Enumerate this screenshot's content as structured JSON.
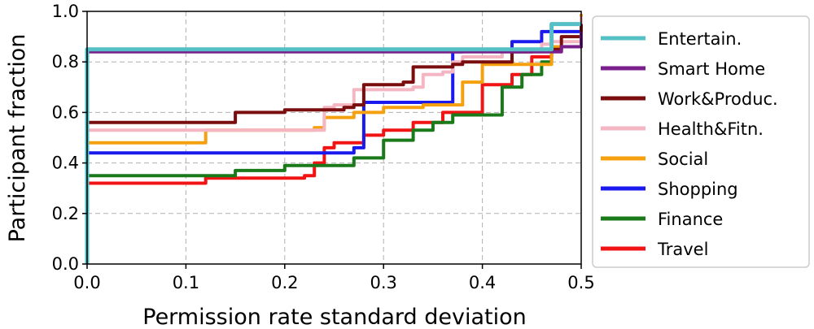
{
  "chart_data": {
    "type": "line",
    "title": "",
    "xlabel": "Permission rate standard deviation",
    "ylabel": "Participant fraction",
    "xlim": [
      0.0,
      0.5
    ],
    "ylim": [
      0.0,
      1.0
    ],
    "grid": true,
    "legend_position": "right",
    "xticks": [
      "0.0",
      "0.1",
      "0.2",
      "0.3",
      "0.4",
      "0.5"
    ],
    "yticks": [
      "0.0",
      "0.2",
      "0.4",
      "0.6",
      "0.8",
      "1.0"
    ],
    "series": [
      {
        "name": "Entertain.",
        "color": "#55bfc6",
        "x": [
          0.0,
          0.0,
          0.47,
          0.47,
          0.5
        ],
        "y": [
          0.0,
          0.85,
          0.86,
          0.95,
          0.95
        ]
      },
      {
        "name": "Smart Home",
        "color": "#7a1e8c",
        "x": [
          0.0,
          0.0,
          0.45,
          0.48,
          0.5
        ],
        "y": [
          0.0,
          0.84,
          0.84,
          0.86,
          0.92
        ]
      },
      {
        "name": "Work&Produc.",
        "color": "#7a0d0d",
        "x": [
          0.0,
          0.0,
          0.1,
          0.15,
          0.15,
          0.2,
          0.26,
          0.27,
          0.28,
          0.28,
          0.32,
          0.33,
          0.37,
          0.38,
          0.43,
          0.45,
          0.48,
          0.5
        ],
        "y": [
          0.0,
          0.56,
          0.56,
          0.57,
          0.6,
          0.61,
          0.62,
          0.63,
          0.63,
          0.71,
          0.72,
          0.78,
          0.79,
          0.8,
          0.84,
          0.85,
          0.9,
          0.95
        ]
      },
      {
        "name": "Health&Fitn.",
        "color": "#f4b6c2",
        "x": [
          0.0,
          0.0,
          0.24,
          0.24,
          0.25,
          0.27,
          0.27,
          0.33,
          0.34,
          0.36,
          0.37,
          0.38,
          0.42,
          0.46,
          0.47,
          0.5
        ],
        "y": [
          0.0,
          0.53,
          0.54,
          0.62,
          0.63,
          0.64,
          0.69,
          0.7,
          0.75,
          0.76,
          0.8,
          0.82,
          0.84,
          0.87,
          0.88,
          0.98
        ]
      },
      {
        "name": "Social",
        "color": "#f5a10f",
        "x": [
          0.0,
          0.0,
          0.12,
          0.12,
          0.23,
          0.24,
          0.27,
          0.3,
          0.34,
          0.38,
          0.38,
          0.4,
          0.4,
          0.47,
          0.5
        ],
        "y": [
          0.0,
          0.48,
          0.49,
          0.53,
          0.54,
          0.58,
          0.6,
          0.62,
          0.63,
          0.64,
          0.72,
          0.75,
          0.79,
          0.86,
          0.99
        ]
      },
      {
        "name": "Shopping",
        "color": "#1a1aee",
        "x": [
          0.0,
          0.0,
          0.14,
          0.27,
          0.27,
          0.28,
          0.28,
          0.37,
          0.37,
          0.38,
          0.43,
          0.46,
          0.5
        ],
        "y": [
          0.0,
          0.44,
          0.44,
          0.45,
          0.46,
          0.58,
          0.64,
          0.65,
          0.84,
          0.85,
          0.88,
          0.92,
          0.97
        ]
      },
      {
        "name": "Finance",
        "color": "#1a7a1a",
        "x": [
          0.0,
          0.0,
          0.1,
          0.15,
          0.2,
          0.27,
          0.3,
          0.33,
          0.35,
          0.37,
          0.42,
          0.44,
          0.46,
          0.47,
          0.5
        ],
        "y": [
          0.0,
          0.35,
          0.35,
          0.37,
          0.39,
          0.42,
          0.49,
          0.53,
          0.56,
          0.59,
          0.7,
          0.75,
          0.8,
          0.86,
          0.94
        ]
      },
      {
        "name": "Travel",
        "color": "#f01414",
        "x": [
          0.0,
          0.0,
          0.1,
          0.12,
          0.22,
          0.23,
          0.24,
          0.25,
          0.28,
          0.3,
          0.33,
          0.36,
          0.4,
          0.43,
          0.45,
          0.47,
          0.5
        ],
        "y": [
          0.0,
          0.32,
          0.32,
          0.34,
          0.35,
          0.4,
          0.46,
          0.48,
          0.51,
          0.53,
          0.56,
          0.6,
          0.71,
          0.75,
          0.82,
          0.86,
          0.93
        ]
      }
    ]
  }
}
